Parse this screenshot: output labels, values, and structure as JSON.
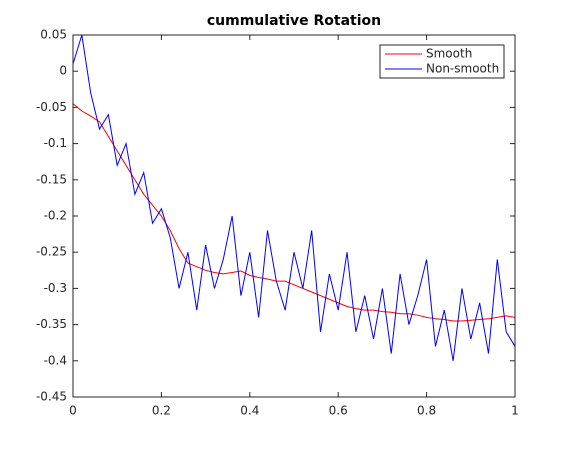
{
  "chart_data": {
    "type": "line",
    "title": "cummulative Rotation",
    "x": [
      0,
      0.02,
      0.04,
      0.06,
      0.08,
      0.1,
      0.12,
      0.14,
      0.16,
      0.18,
      0.2,
      0.22,
      0.24,
      0.26,
      0.28,
      0.3,
      0.32,
      0.34,
      0.36,
      0.38,
      0.4,
      0.42,
      0.44,
      0.46,
      0.48,
      0.5,
      0.52,
      0.54,
      0.56,
      0.58,
      0.6,
      0.62,
      0.64,
      0.66,
      0.68,
      0.7,
      0.72,
      0.74,
      0.76,
      0.78,
      0.8,
      0.82,
      0.84,
      0.86,
      0.88,
      0.9,
      0.92,
      0.94,
      0.96,
      0.98,
      1
    ],
    "series": [
      {
        "name": "Smooth",
        "color": "#ff0000",
        "values": [
          -0.045,
          -0.055,
          -0.062,
          -0.07,
          -0.09,
          -0.11,
          -0.13,
          -0.15,
          -0.17,
          -0.185,
          -0.2,
          -0.22,
          -0.245,
          -0.265,
          -0.27,
          -0.275,
          -0.278,
          -0.28,
          -0.278,
          -0.276,
          -0.282,
          -0.285,
          -0.287,
          -0.29,
          -0.29,
          -0.295,
          -0.3,
          -0.305,
          -0.31,
          -0.315,
          -0.32,
          -0.325,
          -0.328,
          -0.33,
          -0.33,
          -0.332,
          -0.333,
          -0.335,
          -0.335,
          -0.337,
          -0.34,
          -0.342,
          -0.343,
          -0.345,
          -0.345,
          -0.344,
          -0.343,
          -0.342,
          -0.34,
          -0.338,
          -0.34
        ]
      },
      {
        "name": "Non-smooth",
        "color": "#0000ff",
        "values": [
          0.01,
          0.05,
          -0.03,
          -0.08,
          -0.06,
          -0.13,
          -0.1,
          -0.17,
          -0.14,
          -0.21,
          -0.19,
          -0.23,
          -0.3,
          -0.25,
          -0.33,
          -0.24,
          -0.3,
          -0.26,
          -0.2,
          -0.31,
          -0.25,
          -0.34,
          -0.22,
          -0.29,
          -0.33,
          -0.25,
          -0.3,
          -0.22,
          -0.36,
          -0.28,
          -0.33,
          -0.25,
          -0.36,
          -0.31,
          -0.37,
          -0.3,
          -0.39,
          -0.28,
          -0.35,
          -0.31,
          -0.26,
          -0.38,
          -0.33,
          -0.4,
          -0.3,
          -0.37,
          -0.32,
          -0.39,
          -0.26,
          -0.36,
          -0.38
        ]
      }
    ],
    "xlim": [
      0,
      1
    ],
    "xticks": [
      0,
      0.2,
      0.4,
      0.6,
      0.8,
      1
    ],
    "ylim": [
      -0.45,
      0.05
    ],
    "yticks": [
      0.05,
      0,
      -0.05,
      -0.1,
      -0.15,
      -0.2,
      -0.25,
      -0.3,
      -0.35,
      -0.4,
      -0.45
    ],
    "legend": "upper right"
  }
}
